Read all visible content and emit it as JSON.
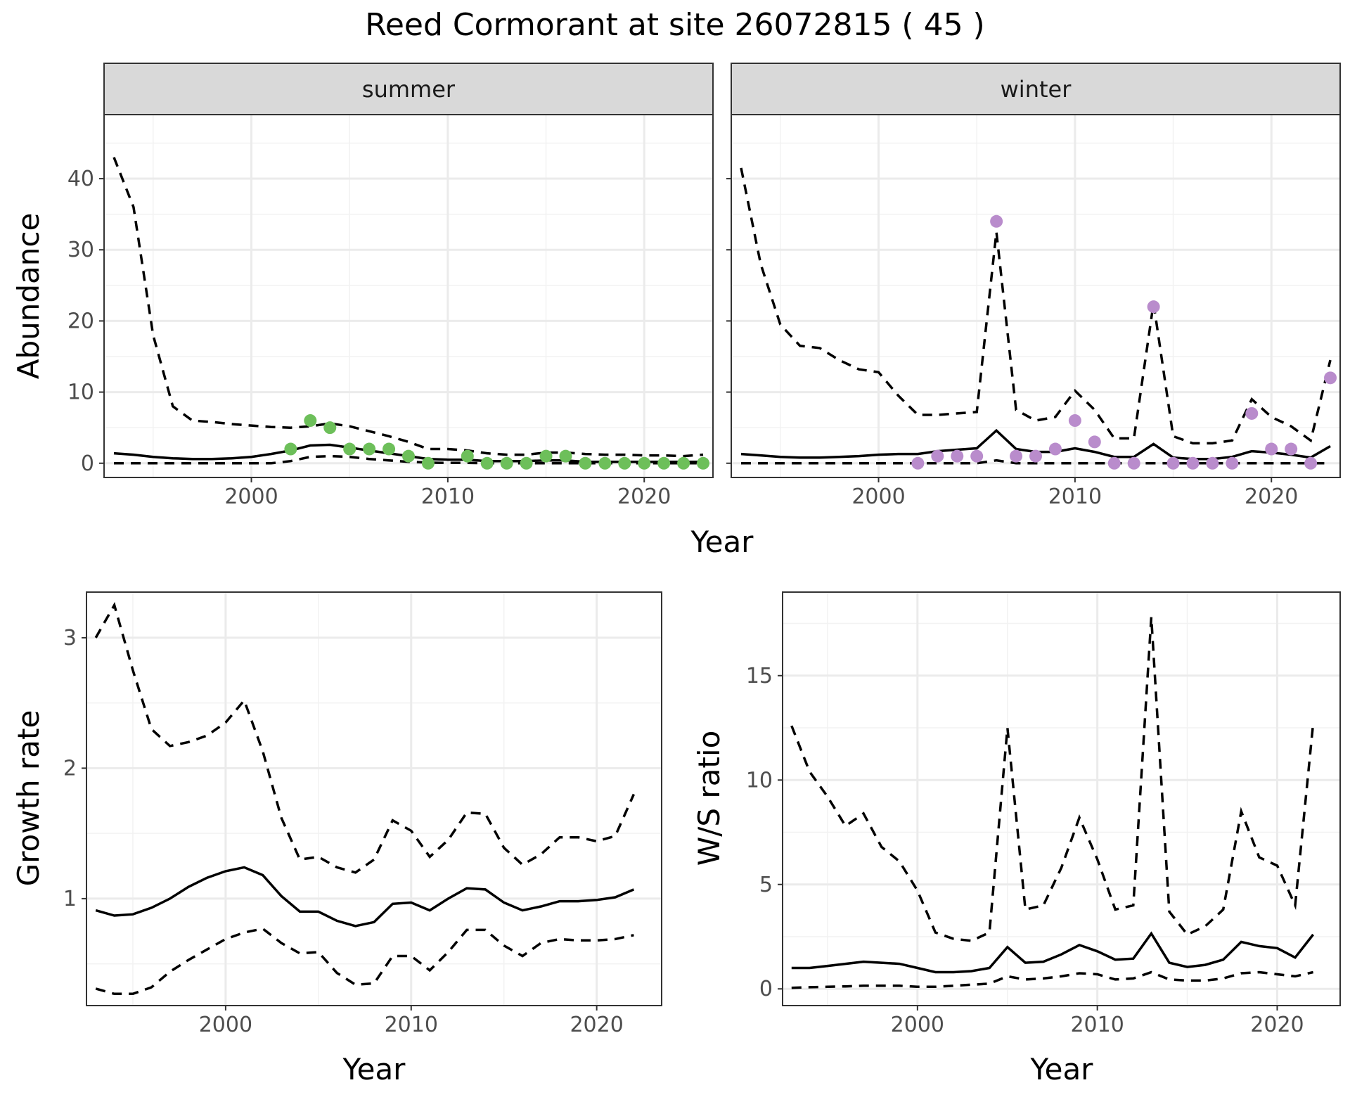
{
  "figure": {
    "title": "Reed Cormorant at site 26072815 ( 45 )"
  },
  "colors": {
    "summer_points": "#6dbf5a",
    "winter_points": "#b98ccc",
    "lines": "#000000"
  },
  "chart_data": [
    {
      "type": "line",
      "panel": "abundance",
      "facets": [
        "summer",
        "winter"
      ],
      "xlabel": "Year",
      "ylabel": "Abundance",
      "xlim": [
        1992.5,
        2023.5
      ],
      "ylim": [
        -2,
        49
      ],
      "xticks": [
        2000,
        2010,
        2020
      ],
      "yticks": [
        0,
        10,
        20,
        30,
        40
      ],
      "x": [
        1993,
        1994,
        1995,
        1996,
        1997,
        1998,
        1999,
        2000,
        2001,
        2002,
        2003,
        2004,
        2005,
        2006,
        2007,
        2008,
        2009,
        2010,
        2011,
        2012,
        2013,
        2014,
        2015,
        2016,
        2017,
        2018,
        2019,
        2020,
        2021,
        2022,
        2023
      ],
      "summer": {
        "mid": [
          1.4,
          1.2,
          0.9,
          0.7,
          0.6,
          0.6,
          0.7,
          0.9,
          1.3,
          1.8,
          2.5,
          2.6,
          2.2,
          1.8,
          1.4,
          1.0,
          0.6,
          0.5,
          0.5,
          0.3,
          0.3,
          0.3,
          0.4,
          0.4,
          0.2,
          0.2,
          0.2,
          0.2,
          0.2,
          0.2,
          0.2
        ],
        "upper": [
          43,
          36,
          18,
          8,
          6,
          5.8,
          5.5,
          5.3,
          5.1,
          5,
          5.2,
          5.6,
          5.2,
          4.5,
          3.8,
          3,
          2,
          2,
          1.8,
          1.4,
          1.2,
          1.2,
          1.5,
          1.5,
          1.3,
          1.2,
          1.2,
          1.1,
          1.1,
          1.0,
          1.2
        ],
        "lower": [
          0,
          0,
          0,
          0,
          0,
          0,
          0,
          0,
          0,
          0.3,
          0.9,
          1,
          0.9,
          0.6,
          0.4,
          0.2,
          0.1,
          0.05,
          0.05,
          0,
          0,
          0,
          0,
          0,
          0,
          0,
          0,
          0,
          0,
          0,
          0
        ],
        "obs_x": [
          2002,
          2003,
          2004,
          2005,
          2006,
          2007,
          2008,
          2009,
          2011,
          2012,
          2013,
          2014,
          2015,
          2016,
          2017,
          2018,
          2019,
          2020,
          2021,
          2022,
          2023
        ],
        "obs_y": [
          2,
          6,
          5,
          2,
          2,
          2,
          1,
          0,
          1,
          0,
          0,
          0,
          1,
          1,
          0,
          0,
          0,
          0,
          0,
          0,
          0
        ]
      },
      "winter": {
        "mid": [
          1.3,
          1.1,
          0.9,
          0.8,
          0.8,
          0.9,
          1.0,
          1.2,
          1.3,
          1.3,
          1.7,
          1.9,
          2.1,
          4.6,
          2.0,
          1.6,
          1.6,
          2.1,
          1.6,
          0.9,
          0.9,
          2.7,
          0.8,
          0.6,
          0.6,
          0.9,
          1.7,
          1.5,
          1.2,
          0.8,
          2.4
        ],
        "upper": [
          41.5,
          28,
          19.5,
          16.5,
          16.2,
          14.5,
          13.2,
          12.8,
          9.5,
          6.8,
          6.8,
          7,
          7.2,
          32.5,
          7.5,
          6,
          6.5,
          10.2,
          7.5,
          3.5,
          3.5,
          22.5,
          3.8,
          2.8,
          2.8,
          3.2,
          9,
          6.5,
          5.2,
          3.2,
          14.5
        ],
        "lower": [
          0,
          0,
          0,
          0,
          0,
          0,
          0,
          0,
          0,
          0,
          0,
          0,
          0,
          0.4,
          0,
          0,
          0,
          0,
          0,
          0,
          0,
          0,
          0,
          0,
          0,
          0,
          0,
          0,
          0,
          0,
          0
        ],
        "obs_x": [
          2002,
          2003,
          2004,
          2005,
          2006,
          2007,
          2008,
          2009,
          2010,
          2011,
          2012,
          2013,
          2014,
          2015,
          2016,
          2017,
          2018,
          2019,
          2020,
          2021,
          2022,
          2023
        ],
        "obs_y": [
          0,
          1,
          1,
          1,
          34,
          1,
          1,
          2,
          6,
          3,
          0,
          0,
          22,
          0,
          0,
          0,
          0,
          7,
          2,
          2,
          0,
          12
        ]
      }
    },
    {
      "type": "line",
      "panel": "growth",
      "xlabel": "Year",
      "ylabel": "Growth rate",
      "xlim": [
        1992.5,
        2023.5
      ],
      "ylim": [
        0.18,
        3.35
      ],
      "xticks": [
        2000,
        2010,
        2020
      ],
      "yticks": [
        1,
        2,
        3
      ],
      "x": [
        1993,
        1994,
        1995,
        1996,
        1997,
        1998,
        1999,
        2000,
        2001,
        2002,
        2003,
        2004,
        2005,
        2006,
        2007,
        2008,
        2009,
        2010,
        2011,
        2012,
        2013,
        2014,
        2015,
        2016,
        2017,
        2018,
        2019,
        2020,
        2021,
        2022
      ],
      "mid": [
        0.91,
        0.87,
        0.88,
        0.93,
        1.0,
        1.09,
        1.16,
        1.21,
        1.24,
        1.18,
        1.02,
        0.9,
        0.9,
        0.83,
        0.79,
        0.82,
        0.96,
        0.97,
        0.91,
        1.0,
        1.08,
        1.07,
        0.97,
        0.91,
        0.94,
        0.98,
        0.98,
        0.99,
        1.01,
        1.07
      ],
      "upper": [
        3.0,
        3.25,
        2.75,
        2.3,
        2.17,
        2.2,
        2.25,
        2.35,
        2.52,
        2.13,
        1.62,
        1.3,
        1.32,
        1.24,
        1.2,
        1.3,
        1.6,
        1.52,
        1.32,
        1.45,
        1.66,
        1.65,
        1.39,
        1.26,
        1.34,
        1.47,
        1.47,
        1.44,
        1.48,
        1.8
      ],
      "lower": [
        0.31,
        0.27,
        0.27,
        0.32,
        0.44,
        0.53,
        0.61,
        0.69,
        0.74,
        0.77,
        0.66,
        0.58,
        0.59,
        0.43,
        0.34,
        0.35,
        0.56,
        0.56,
        0.45,
        0.59,
        0.76,
        0.76,
        0.64,
        0.56,
        0.66,
        0.69,
        0.68,
        0.68,
        0.69,
        0.72
      ]
    },
    {
      "type": "line",
      "panel": "ws_ratio",
      "xlabel": "Year",
      "ylabel": "W/S ratio",
      "xlim": [
        1992.5,
        2023.5
      ],
      "ylim": [
        -0.8,
        19
      ],
      "xticks": [
        2000,
        2010,
        2020
      ],
      "yticks": [
        0,
        5,
        10,
        15
      ],
      "x": [
        1993,
        1994,
        1995,
        1996,
        1997,
        1998,
        1999,
        2000,
        2001,
        2002,
        2003,
        2004,
        2005,
        2006,
        2007,
        2008,
        2009,
        2010,
        2011,
        2012,
        2013,
        2014,
        2015,
        2016,
        2017,
        2018,
        2019,
        2020,
        2021,
        2022
      ],
      "mid": [
        1.0,
        1.0,
        1.1,
        1.2,
        1.3,
        1.25,
        1.2,
        1.0,
        0.8,
        0.8,
        0.85,
        1.0,
        2.0,
        1.25,
        1.3,
        1.65,
        2.1,
        1.8,
        1.4,
        1.45,
        2.65,
        1.25,
        1.05,
        1.15,
        1.4,
        2.25,
        2.05,
        1.95,
        1.5,
        2.6
      ],
      "upper": [
        12.6,
        10.4,
        9.2,
        7.8,
        8.4,
        6.8,
        6.1,
        4.7,
        2.7,
        2.4,
        2.3,
        2.7,
        12.5,
        3.8,
        4.0,
        5.8,
        8.2,
        6.2,
        3.8,
        4.0,
        17.8,
        3.7,
        2.6,
        3.0,
        3.8,
        8.5,
        6.3,
        5.9,
        4.0,
        12.7
      ],
      "lower": [
        0.05,
        0.08,
        0.1,
        0.12,
        0.15,
        0.15,
        0.15,
        0.1,
        0.1,
        0.15,
        0.2,
        0.25,
        0.6,
        0.45,
        0.5,
        0.6,
        0.75,
        0.7,
        0.45,
        0.5,
        0.8,
        0.45,
        0.4,
        0.4,
        0.5,
        0.75,
        0.8,
        0.7,
        0.6,
        0.8
      ]
    }
  ]
}
